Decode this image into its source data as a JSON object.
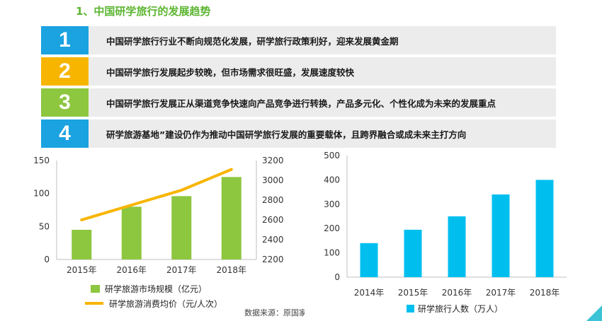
{
  "page": {
    "title": "1、中国研学旅行的发展趋势"
  },
  "trends": [
    {
      "number": "1",
      "text": "中国研学旅行行业不断向规范化发展，研学旅行政策利好，迎来发展黄金期",
      "color": "#1aa3e0"
    },
    {
      "number": "2",
      "text": "中国研学旅行发展起步较晚，但市场需求很旺盛，发展速度较快",
      "color": "#f7b500"
    },
    {
      "number": "3",
      "text": "中国研学旅行发展正从渠道竞争快速向产品竞争进行转换，产品多元化、个性化成为未来的发展重点",
      "color": "#8dc63f"
    },
    {
      "number": "4",
      "text": "研学旅游基地”建设仍作为推动中国研学旅行发展的重要载体，且跨界融合或成未来主打方向",
      "color": "#1aa3e0"
    }
  ],
  "source": "数据来源：原国家旅游局",
  "chart_data": [
    {
      "type": "bar",
      "categories": [
        "2015年",
        "2016年",
        "2017年",
        "2018年"
      ],
      "series": [
        {
          "name": "研学旅游市场规模（亿元）",
          "type": "bar",
          "axis": "left",
          "color": "#8dc63f",
          "values": [
            45,
            80,
            96,
            125
          ]
        },
        {
          "name": "研学旅游消费均价（元/人次）",
          "type": "line",
          "axis": "right",
          "color": "#f7b500",
          "values": [
            2600,
            2750,
            2900,
            3110
          ]
        }
      ],
      "y_left": {
        "min": 0,
        "max": 150,
        "ticks": [
          0,
          50,
          100,
          150
        ]
      },
      "y_right": {
        "min": 2200,
        "max": 3200,
        "ticks": [
          2200,
          2400,
          2600,
          2800,
          3000,
          3200
        ]
      },
      "grid": false,
      "legend": "bottom"
    },
    {
      "type": "bar",
      "categories": [
        "2014年",
        "2015年",
        "2016年",
        "2017年",
        "2018年"
      ],
      "series": [
        {
          "name": "研学旅行人数（万人）",
          "color": "#00bfef",
          "values": [
            140,
            195,
            250,
            340,
            400
          ]
        }
      ],
      "y": {
        "min": 0,
        "max": 500,
        "ticks": [
          0,
          100,
          200,
          300,
          400,
          500
        ]
      },
      "grid": false,
      "legend": "bottom"
    }
  ]
}
